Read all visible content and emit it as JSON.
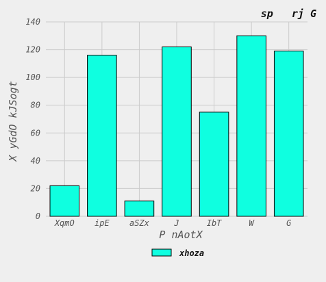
{
  "chart_data": {
    "type": "bar",
    "title": "sp   rj G",
    "xlabel": "P nAotX",
    "ylabel": "X yGdO kJSogt",
    "categories": [
      "XqmO",
      "ipE",
      "aSZx",
      "J",
      "IbT",
      "W",
      "G"
    ],
    "series": [
      {
        "name": "xhoza",
        "values": [
          22,
          116,
          11,
          122,
          75,
          130,
          119
        ]
      }
    ],
    "ylim": [
      0,
      140
    ],
    "yticks": [
      0,
      20,
      40,
      60,
      80,
      100,
      120,
      140
    ],
    "grid": true,
    "legend_position": "bottom-center",
    "colors": {
      "bar": "#0fffe0",
      "bar_edge": "#000000",
      "background": "#efefef",
      "plot_background": "#efefef",
      "grid": "#cbcbcb"
    }
  }
}
